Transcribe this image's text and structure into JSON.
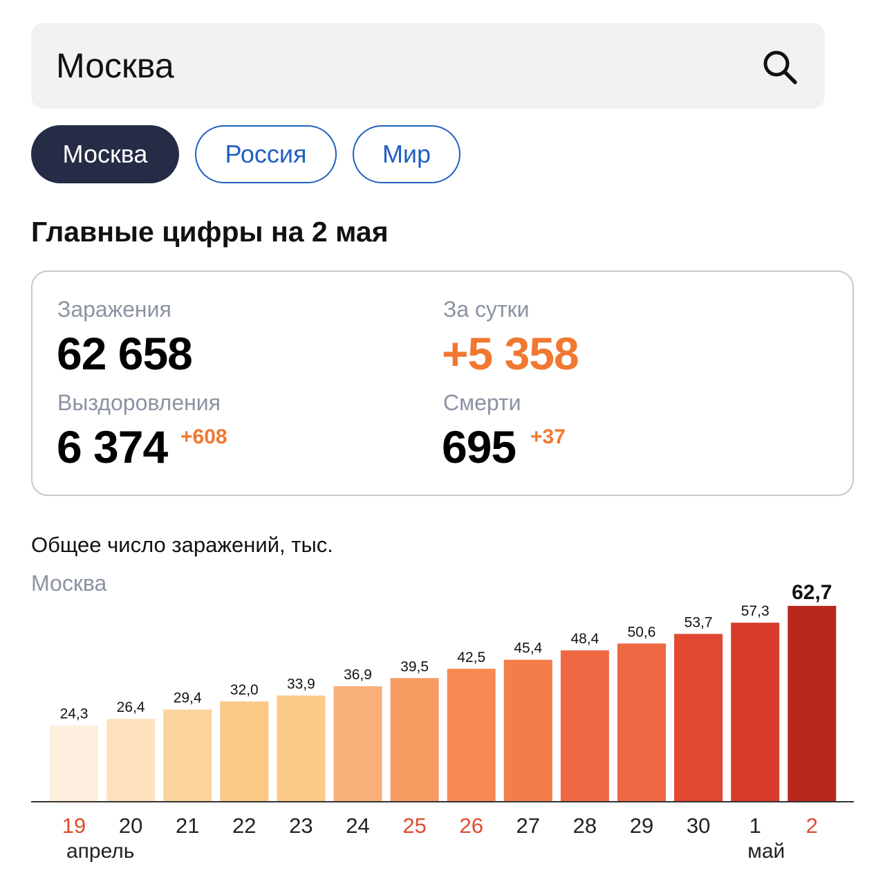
{
  "search": {
    "value": "Москва"
  },
  "chips": [
    {
      "label": "Москва",
      "active": true
    },
    {
      "label": "Россия",
      "active": false
    },
    {
      "label": "Мир",
      "active": false
    }
  ],
  "main_title": "Главные цифры на 2 мая",
  "stats": {
    "infections": {
      "label": "Заражения",
      "value": "62 658"
    },
    "daily": {
      "label": "За сутки",
      "value": "+5 358"
    },
    "recoveries": {
      "label": "Выздоровления",
      "value": "6 374",
      "delta": "+608"
    },
    "deaths": {
      "label": "Смерти",
      "value": "695",
      "delta": "+37"
    }
  },
  "chart_title": "Общее число заражений, тыс.",
  "chart_subtitle": "Москва",
  "colors": {
    "accent_orange": "#f07830",
    "chip_active_bg": "#262c45",
    "chip_outline": "#1f5fc2",
    "weekend_label": "#e04a2e",
    "bar_gradient": [
      "#fdeedd",
      "#fde2bd",
      "#fbd39c",
      "#fbc986",
      "#f9b07a",
      "#f89b62",
      "#f78851",
      "#f47d4c",
      "#ef6844",
      "#e04832",
      "#d63b2b",
      "#b8271e"
    ]
  },
  "chart_data": {
    "type": "bar",
    "title": "Общее число заражений, тыс.",
    "subtitle": "Москва",
    "categories": [
      "19",
      "20",
      "21",
      "22",
      "23",
      "24",
      "25",
      "26",
      "27",
      "28",
      "29",
      "30",
      "1",
      "2"
    ],
    "values": [
      24.3,
      26.4,
      29.4,
      32.0,
      33.9,
      36.9,
      39.5,
      42.5,
      45.4,
      48.4,
      50.6,
      53.7,
      57.3,
      62.7
    ],
    "value_labels": [
      "24,3",
      "26,4",
      "29,4",
      "32,0",
      "33,9",
      "36,9",
      "39,5",
      "42,5",
      "45,4",
      "48,4",
      "50,6",
      "53,7",
      "57,3",
      "62,7"
    ],
    "highlighted_categories": [
      "19",
      "25",
      "26",
      "2"
    ],
    "month_labels": [
      {
        "label": "апрель",
        "category": "19"
      },
      {
        "label": "май",
        "category": "1"
      }
    ],
    "xlabel": "",
    "ylabel": "",
    "ylim": [
      0,
      64
    ],
    "grid": false,
    "legend": "none"
  }
}
